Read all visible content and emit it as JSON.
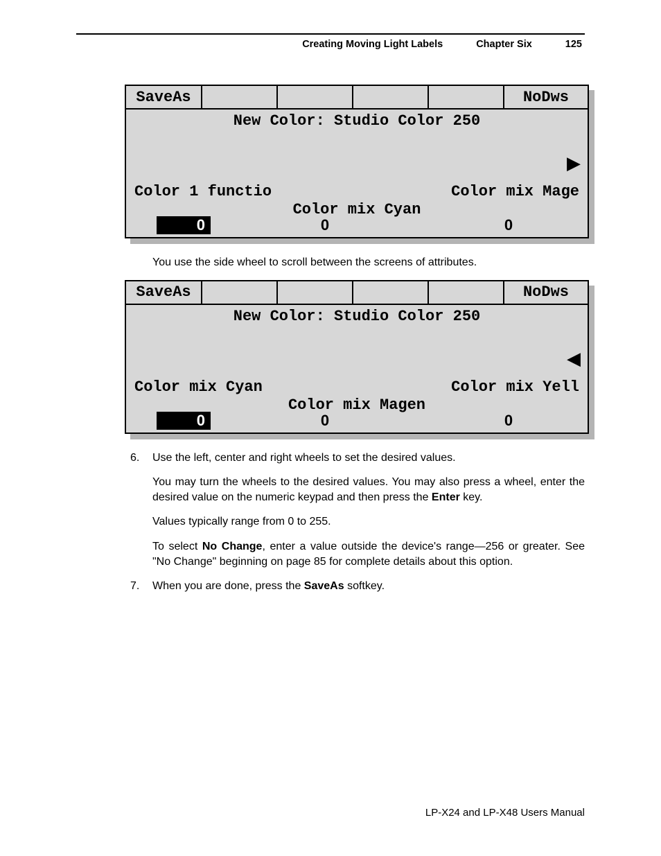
{
  "header": {
    "section": "Creating Moving Light Labels",
    "chapter": "Chapter Six",
    "page": "125"
  },
  "panel1": {
    "sk_left": "SaveAs",
    "sk_right": "NoDws",
    "title": "New Color: Studio Color 250",
    "arrow": "▶",
    "attr_left": "Color 1 functio",
    "attr_mid": "Color mix Cyan",
    "attr_right": "Color mix Mage",
    "val_left": "0",
    "val_mid": "0",
    "val_right": "0"
  },
  "para_scroll": "You use the side wheel to scroll between the screens of attributes.",
  "panel2": {
    "sk_left": "SaveAs",
    "sk_right": "NoDws",
    "title": "New Color: Studio Color 250",
    "arrow": "◀",
    "attr_left": "Color mix Cyan",
    "attr_mid": "Color mix Magen",
    "attr_right": "Color mix Yell",
    "val_left": "0",
    "val_mid": "0",
    "val_right": "0"
  },
  "step6": {
    "num": "6.",
    "line1": "Use the left, center and right wheels to set the desired values.",
    "line2a": "You may turn the wheels to the desired values. You may also press a wheel, enter the desired value on the numeric keypad and then press the ",
    "line2b_bold": "Enter",
    "line2c": " key.",
    "line3": "Values typically range from 0 to 255.",
    "line4a": "To select ",
    "line4b_bold": "No Change",
    "line4c": ", enter a value outside the device's range—256 or greater. See \"No Change\" beginning on page 85 for complete details about this option."
  },
  "step7": {
    "num": "7.",
    "a": "When you are done, press the ",
    "b_bold": "SaveAs",
    "c": " softkey."
  },
  "footer": "LP-X24 and LP-X48 Users Manual"
}
